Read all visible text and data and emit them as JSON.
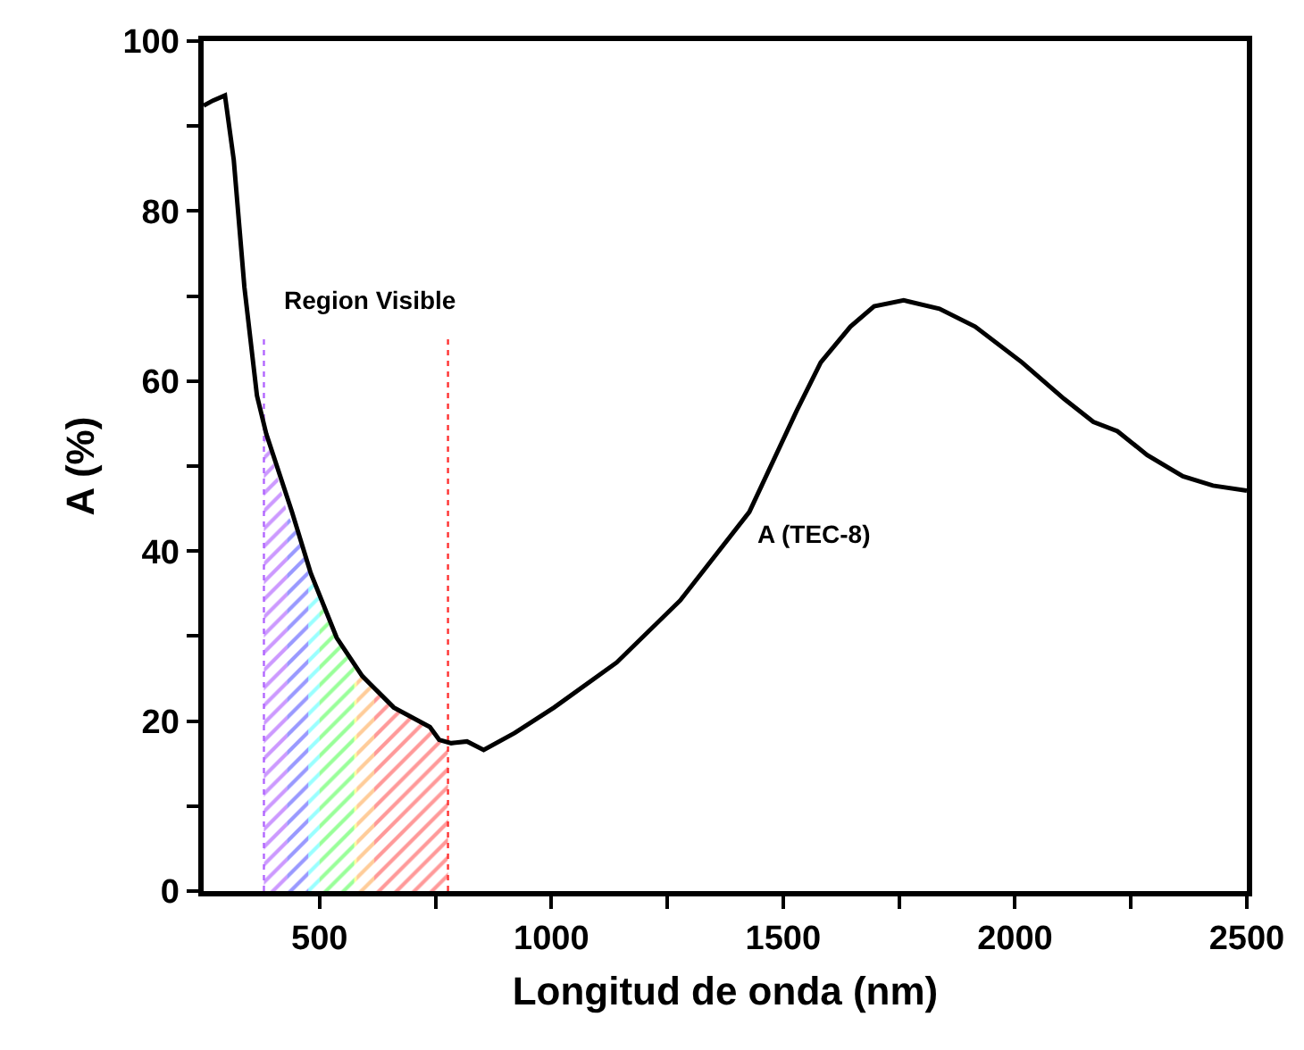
{
  "chart_data": {
    "type": "line",
    "xlabel": "Longitud de onda (nm)",
    "ylabel": "A (%)",
    "xlim": [
      250,
      2500
    ],
    "ylim": [
      0,
      100
    ],
    "xticks": [
      {
        "value": 500,
        "label": "500"
      },
      {
        "value": 750,
        "label": null
      },
      {
        "value": 1000,
        "label": "1000"
      },
      {
        "value": 1250,
        "label": null
      },
      {
        "value": 1500,
        "label": "1500"
      },
      {
        "value": 1750,
        "label": null
      },
      {
        "value": 2000,
        "label": "2000"
      },
      {
        "value": 2250,
        "label": null
      },
      {
        "value": 2500,
        "label": "2500"
      }
    ],
    "yticks": [
      0,
      {
        "value": 10,
        "label": null
      },
      20,
      {
        "value": 30,
        "label": null
      },
      40,
      {
        "value": 50,
        "label": null
      },
      60,
      {
        "value": 70,
        "label": null
      },
      80,
      {
        "value": 90,
        "label": null
      },
      100
    ],
    "legend": false,
    "marker": "none",
    "series": [
      {
        "type": "area",
        "color": "#9933ff",
        "x": [
          380,
          400,
          430
        ],
        "values": [
          54.5,
          50.5,
          44.5
        ]
      },
      {
        "type": "area",
        "color": "#3333ff",
        "x": [
          430,
          455,
          476
        ],
        "values": [
          44.5,
          41.5,
          38
        ]
      },
      {
        "type": "area",
        "color": "#33ffff",
        "x": [
          476,
          490,
          500
        ],
        "values": [
          38,
          36,
          34.5
        ]
      },
      {
        "type": "area",
        "color": "#33ff33",
        "x": [
          500,
          537,
          575
        ],
        "values": [
          34.5,
          29.8,
          26.5
        ]
      },
      {
        "type": "area",
        "color": "#ffff33",
        "x": [
          575,
          580
        ],
        "values": [
          26.5,
          26
        ]
      },
      {
        "type": "area",
        "color": "#ff9933",
        "x": [
          580,
          600,
          618
        ],
        "values": [
          26,
          24.8,
          23.5
        ]
      },
      {
        "type": "area",
        "color": "#ff3333",
        "x": [
          618,
          660,
          700,
          738,
          758,
          777
        ],
        "values": [
          23.5,
          21.6,
          20.2,
          19.3,
          17.8,
          17.4
        ]
      },
      {
        "type": "line",
        "color": "#b266ff",
        "line_style": "dotted",
        "x": [
          380,
          380
        ],
        "values": [
          0,
          65
        ]
      },
      {
        "type": "line",
        "color": "#ff3333",
        "line_style": "dotted",
        "x": [
          777,
          777
        ],
        "values": [
          0,
          65
        ]
      },
      {
        "name": "A (TEC-8)",
        "color": "#000000",
        "line_style": "solid",
        "x": [
          250,
          270,
          296,
          315,
          338,
          365,
          385,
          440,
          481,
          537,
          592,
          660,
          738,
          758,
          784,
          818,
          854,
          921,
          1006,
          1141,
          1278,
          1427,
          1529,
          1581,
          1645,
          1696,
          1760,
          1837,
          1914,
          2015,
          2106,
          2169,
          2221,
          2285,
          2362,
          2427,
          2500
        ],
        "values": [
          92.4,
          93,
          93.6,
          86,
          71,
          58.3,
          53.8,
          44.7,
          37.4,
          29.8,
          25.3,
          21.6,
          19.3,
          17.8,
          17.4,
          17.6,
          16.6,
          18.6,
          21.6,
          26.9,
          34.2,
          44.6,
          56.5,
          62.2,
          66.4,
          68.8,
          69.5,
          68.5,
          66.4,
          62.2,
          57.9,
          55.2,
          54.1,
          51.3,
          48.8,
          47.7,
          47.1
        ]
      }
    ],
    "annotations": [
      "Region Visible"
    ]
  }
}
